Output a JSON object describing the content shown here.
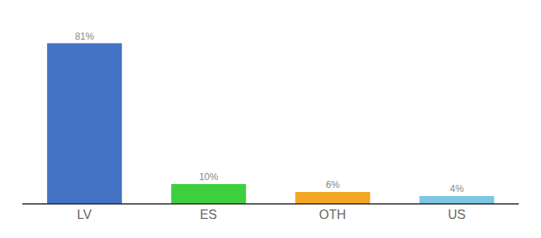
{
  "chart_data": {
    "type": "bar",
    "categories": [
      "LV",
      "ES",
      "OTH",
      "US"
    ],
    "values": [
      81,
      10,
      6,
      4
    ],
    "value_labels": [
      "81%",
      "10%",
      "6%",
      "4%"
    ],
    "colors": [
      "#4472c4",
      "#3ecf3e",
      "#f5a623",
      "#7ec8e3"
    ],
    "ylim": [
      0,
      90
    ],
    "data_labels": true,
    "tick_labels": "x",
    "grid": false
  }
}
